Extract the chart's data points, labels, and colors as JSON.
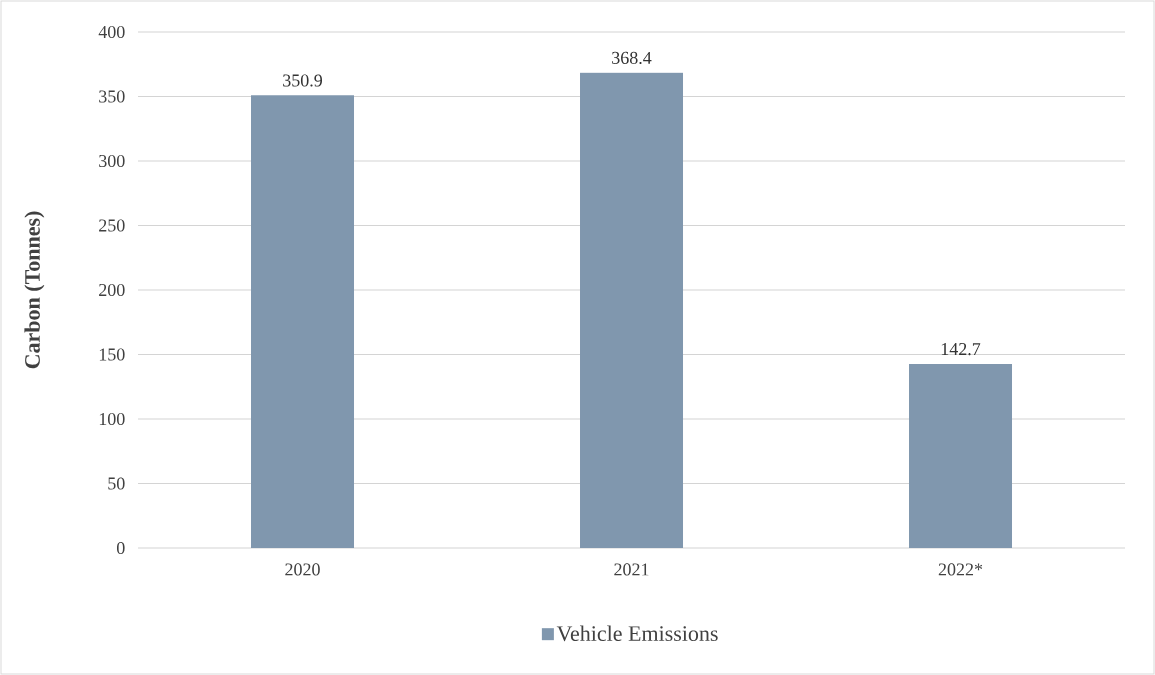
{
  "chart_data": {
    "type": "bar",
    "ylabel": "Carbon (Tonnes)",
    "categories": [
      "2020",
      "2021",
      "2022*"
    ],
    "series": [
      {
        "name": "Vehicle Emissions",
        "color": "#8097ae",
        "values": [
          350.9,
          368.4,
          142.7
        ]
      }
    ],
    "ylim": [
      0,
      400
    ],
    "yticks": [
      0,
      50,
      100,
      150,
      200,
      250,
      300,
      350,
      400
    ],
    "grid": "y",
    "legend": "bottom",
    "data_labels": true
  }
}
